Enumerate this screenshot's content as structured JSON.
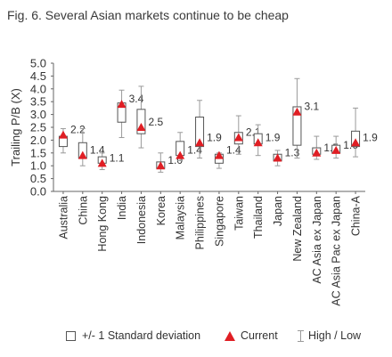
{
  "figure": {
    "title": "Fig. 6. Several Asian markets continue to be cheap"
  },
  "legend": {
    "std_label": "+/- 1 Standard deviation",
    "current_label": "Current",
    "range_label": "High / Low"
  },
  "colors": {
    "current": "#e01e24",
    "box": "#555555",
    "whisker": "#9a9a9a",
    "axis": "#666666"
  },
  "chart_data": {
    "type": "box",
    "ylabel": "Trailing P/B (X)",
    "ylim": [
      0,
      5
    ],
    "yticks": [
      "0.0",
      "0.5",
      "1.0",
      "1.5",
      "2.0",
      "2.5",
      "3.0",
      "3.5",
      "4.0",
      "4.5",
      "5.0"
    ],
    "categories": [
      "Australia",
      "China",
      "Hong Kong",
      "India",
      "Indonesia",
      "Korea",
      "Malaysia",
      "Philippines",
      "Singapore",
      "Taiwan",
      "Thailand",
      "Japan",
      "New Zealand",
      "AC Asia ex Japan",
      "AC Asia Pac ex Japan",
      "China-A"
    ],
    "current_labels": [
      "2.2",
      "1.4",
      "1.1",
      "3.4",
      "2.5",
      "1.0",
      "1.4",
      "1.9",
      "1.4",
      "2.1",
      "1.9",
      "1.3",
      "3.1",
      "1.5",
      "1.6",
      "1.9"
    ],
    "series": [
      {
        "name": "Current",
        "values": [
          2.2,
          1.4,
          1.1,
          3.4,
          2.5,
          1.0,
          1.4,
          1.9,
          1.4,
          2.1,
          1.9,
          1.3,
          3.1,
          1.5,
          1.6,
          1.9
        ]
      },
      {
        "name": "+/- 1 Standard deviation (low)",
        "values": [
          1.75,
          1.3,
          1.1,
          2.7,
          2.25,
          0.9,
          1.4,
          1.75,
          1.1,
          1.85,
          1.85,
          1.2,
          1.8,
          1.45,
          1.5,
          1.75
        ]
      },
      {
        "name": "+/- 1 Standard deviation (high)",
        "values": [
          2.15,
          1.9,
          1.35,
          3.45,
          3.2,
          1.15,
          1.95,
          2.9,
          1.45,
          2.3,
          2.25,
          1.45,
          3.3,
          1.7,
          1.8,
          2.35
        ]
      },
      {
        "name": "High",
        "values": [
          2.45,
          2.45,
          1.5,
          3.95,
          4.1,
          1.5,
          2.3,
          3.55,
          1.5,
          2.95,
          2.6,
          1.6,
          4.4,
          2.15,
          2.15,
          3.25
        ]
      },
      {
        "name": "Low",
        "values": [
          1.5,
          1.0,
          0.85,
          2.1,
          1.7,
          0.75,
          1.2,
          1.3,
          0.9,
          1.45,
          1.4,
          1.0,
          1.3,
          1.25,
          1.3,
          1.35
        ]
      }
    ],
    "grid": false
  }
}
